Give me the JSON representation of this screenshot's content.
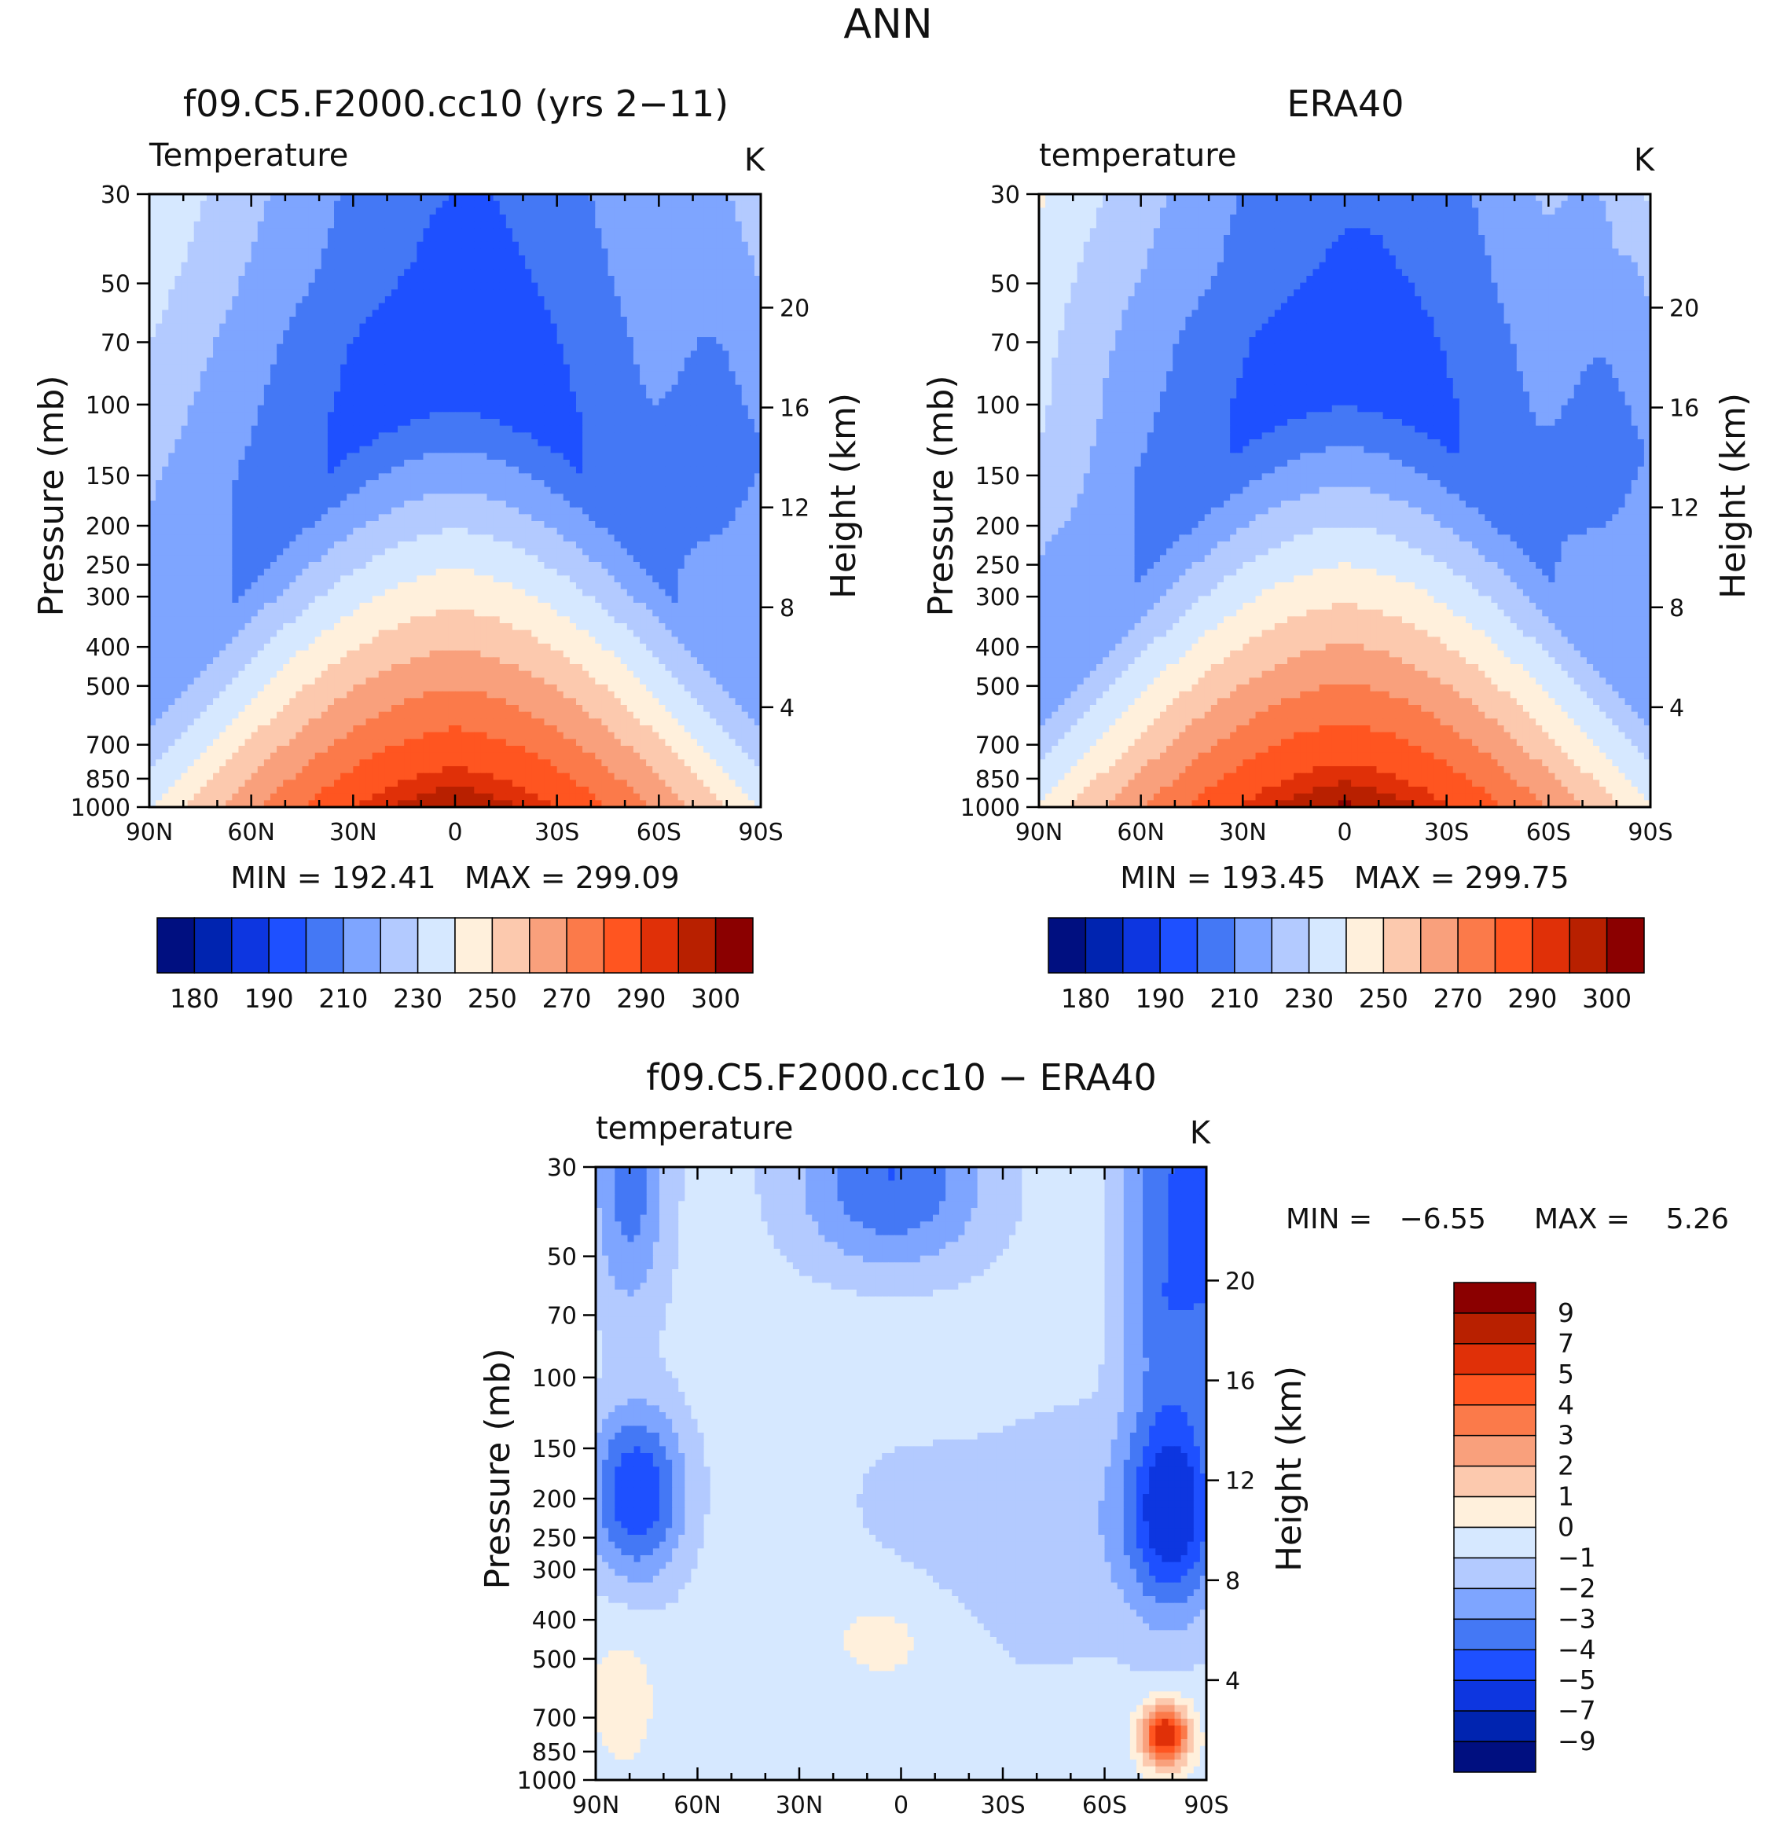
{
  "figure_title": "ANN",
  "colors": {
    "mean_levels": [
      "#000f80",
      "#0024b0",
      "#0d36e0",
      "#1e50ff",
      "#4478f5",
      "#7ea5ff",
      "#b3caff",
      "#d6e8ff",
      "#fff0dc",
      "#fcc9ae",
      "#f9a07c",
      "#fb7a4a",
      "#ff5520",
      "#e03008",
      "#b82000",
      "#8b0000"
    ],
    "diff_levels": [
      "#000f80",
      "#0024b0",
      "#0d36e0",
      "#1e50ff",
      "#4478f5",
      "#7ea5ff",
      "#b3caff",
      "#d6e8ff",
      "#fff0dc",
      "#fcc9ae",
      "#f9a07c",
      "#fb7a4a",
      "#ff5520",
      "#e03008",
      "#b82000",
      "#8b0000"
    ]
  },
  "chart_data": [
    {
      "type": "heatmap",
      "id": "model",
      "title": "f09.C5.F2000.cc10 (yrs 2-11)",
      "left_label": "Temperature",
      "units": "K",
      "xlabel": "",
      "ylabel": "Pressure (mb)",
      "ylabel_right": "Height (km)",
      "x_range": [
        90,
        -90
      ],
      "x_ticks": [
        "90N",
        "60N",
        "30N",
        "0",
        "30S",
        "60S",
        "90S"
      ],
      "y_ticks": [
        "30",
        "50",
        "70",
        "100",
        "150",
        "200",
        "250",
        "300",
        "400",
        "500",
        "700",
        "850",
        "1000"
      ],
      "y_ticks_right": [
        "20",
        "16",
        "12",
        "8",
        "4"
      ],
      "stats": "MIN = 192.41   MAX = 299.09",
      "colorbar_labels": [
        "180",
        "190",
        "210",
        "230",
        "250",
        "270",
        "290",
        "300"
      ],
      "contour_levels": [
        180,
        185,
        190,
        200,
        210,
        220,
        230,
        240,
        250,
        260,
        270,
        280,
        290,
        295,
        300
      ]
    },
    {
      "type": "heatmap",
      "id": "obs",
      "title": "ERA40",
      "left_label": "temperature",
      "units": "K",
      "xlabel": "",
      "ylabel": "Pressure (mb)",
      "ylabel_right": "Height (km)",
      "x_range": [
        90,
        -90
      ],
      "x_ticks": [
        "90N",
        "60N",
        "30N",
        "0",
        "30S",
        "60S",
        "90S"
      ],
      "y_ticks": [
        "30",
        "50",
        "70",
        "100",
        "150",
        "200",
        "250",
        "300",
        "400",
        "500",
        "700",
        "850",
        "1000"
      ],
      "y_ticks_right": [
        "20",
        "16",
        "12",
        "8",
        "4"
      ],
      "stats": "MIN = 193.45   MAX = 299.75",
      "colorbar_labels": [
        "180",
        "190",
        "210",
        "230",
        "250",
        "270",
        "290",
        "300"
      ],
      "contour_levels": [
        180,
        185,
        190,
        200,
        210,
        220,
        230,
        240,
        250,
        260,
        270,
        280,
        290,
        295,
        300
      ]
    },
    {
      "type": "heatmap",
      "id": "diff",
      "title": "f09.C5.F2000.cc10 - ERA40",
      "left_label": "temperature",
      "units": "K",
      "xlabel": "",
      "ylabel": "Pressure (mb)",
      "ylabel_right": "Height (km)",
      "x_range": [
        90,
        -90
      ],
      "x_ticks": [
        "90N",
        "60N",
        "30N",
        "0",
        "30S",
        "60S",
        "90S"
      ],
      "y_ticks": [
        "30",
        "50",
        "70",
        "100",
        "150",
        "200",
        "250",
        "300",
        "400",
        "500",
        "700",
        "850",
        "1000"
      ],
      "y_ticks_right": [
        "20",
        "16",
        "12",
        "8",
        "4"
      ],
      "stats_min": "MIN =   -6.55",
      "stats_max": "MAX =    5.26",
      "colorbar_labels": [
        "9",
        "7",
        "5",
        "4",
        "3",
        "2",
        "1",
        "0",
        "-1",
        "-2",
        "-3",
        "-4",
        "-5",
        "-7",
        "-9"
      ],
      "contour_levels": [
        -9,
        -7,
        -5,
        -4,
        -3,
        -2,
        -1,
        0,
        1,
        2,
        3,
        4,
        5,
        7,
        9
      ]
    }
  ]
}
